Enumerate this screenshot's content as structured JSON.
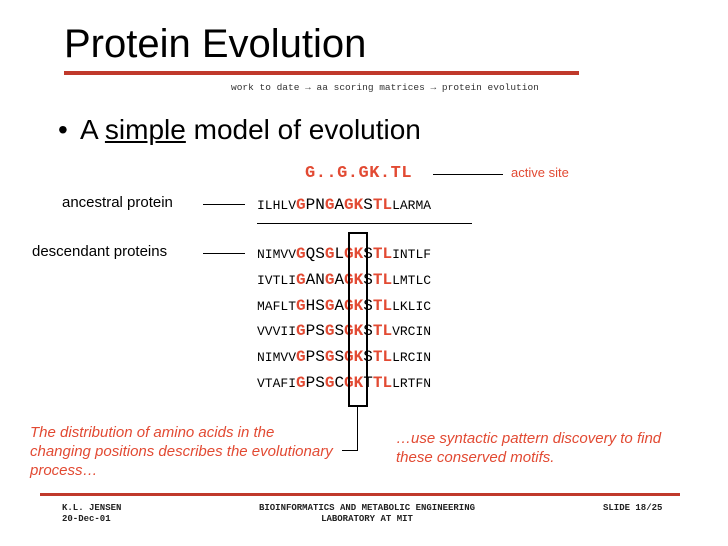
{
  "slide": {
    "title": "Protein Evolution",
    "breadcrumb": "work to date → aa scoring matrices → protein evolution",
    "bullet": {
      "prefix": "A ",
      "emphasis": "simple",
      "suffix": " model of evolution"
    }
  },
  "motif": {
    "pattern": "G..G.GK.TL",
    "label": "active site"
  },
  "labels": {
    "ancestral": "ancestral protein",
    "descendant": "descendant proteins"
  },
  "sequences": [
    [
      "ILHLV",
      "G",
      "PN",
      "G",
      "A",
      "GK",
      "S",
      "TL",
      "LARMA"
    ],
    [
      "NIMVV",
      "G",
      "QS",
      "G",
      "L",
      "GK",
      "S",
      "TL",
      "INTLF"
    ],
    [
      "IVTLI",
      "G",
      "AN",
      "G",
      "A",
      "GK",
      "S",
      "TL",
      "LMTLC"
    ],
    [
      "MAFLT",
      "G",
      "HS",
      "G",
      "A",
      "GK",
      "S",
      "TL",
      "LKLIC"
    ],
    [
      "VVVII",
      "G",
      "PS",
      "G",
      "S",
      "GK",
      "S",
      "TL",
      "VRCIN"
    ],
    [
      "NIMVV",
      "G",
      "PS",
      "G",
      "S",
      "GK",
      "S",
      "TL",
      "LRCIN"
    ],
    [
      "VTAFI",
      "G",
      "PS",
      "G",
      "C",
      "GK",
      "T",
      "TL",
      "LRTFN"
    ]
  ],
  "notes": {
    "left": "The distribution of amino acids in the changing positions describes the evolutionary process…",
    "right": "…use syntactic pattern discovery to find these  conserved motifs."
  },
  "footer": {
    "left_line1": "K.L. JENSEN",
    "left_line2": "20-Dec-01",
    "center_line1": "BIOINFORMATICS AND METABOLIC ENGINEERING",
    "center_line2": "LABORATORY AT MIT",
    "right": "SLIDE 18/25"
  },
  "colors": {
    "accent": "#e24a33",
    "rule": "#c0392b"
  }
}
